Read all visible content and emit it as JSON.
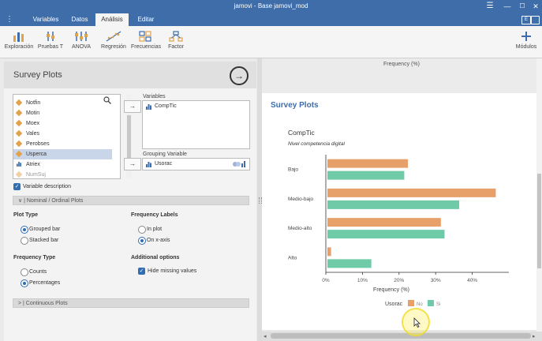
{
  "window": {
    "title": "jamovi - Base jamovi_mod"
  },
  "tabs": [
    {
      "label": "Variables"
    },
    {
      "label": "Datos"
    },
    {
      "label": "Análisis"
    },
    {
      "label": "Editar"
    }
  ],
  "ribbon": {
    "items": [
      {
        "label": "Exploración",
        "icon": "exploration-icon"
      },
      {
        "label": "Pruebas T",
        "icon": "t-test-icon"
      },
      {
        "label": "ANOVA",
        "icon": "anova-icon"
      },
      {
        "label": "Regresión",
        "icon": "regression-icon"
      },
      {
        "label": "Frecuencias",
        "icon": "frequencies-icon"
      },
      {
        "label": "Factor",
        "icon": "factor-icon"
      }
    ],
    "modules_label": "Módulos"
  },
  "analysis": {
    "title": "Survey Plots",
    "variable_list": [
      {
        "name": "Notfin",
        "type": "nominal"
      },
      {
        "name": "Motin",
        "type": "nominal"
      },
      {
        "name": "Moex",
        "type": "nominal"
      },
      {
        "name": "Vales",
        "type": "nominal"
      },
      {
        "name": "Perobses",
        "type": "nominal"
      },
      {
        "name": "Usperca",
        "type": "nominal",
        "selected": true
      },
      {
        "name": "Atriex",
        "type": "continuous"
      },
      {
        "name": "NumSuj",
        "type": "nominal-dimmed"
      }
    ],
    "variables_label": "Variables",
    "variables_value": "CompTic",
    "grouping_label": "Grouping Variable",
    "grouping_value": "Usorac",
    "variable_description_label": "Variable description",
    "nominal_section": "Nominal / Ordinal Plots",
    "plot_type": {
      "heading": "Plot Type",
      "options": [
        "Grouped bar",
        "Stacked bar"
      ],
      "selected": "Grouped bar"
    },
    "frequency_labels": {
      "heading": "Frequency Labels",
      "options": [
        "In plot",
        "On x-axis"
      ],
      "selected": "On x-axis"
    },
    "frequency_type": {
      "heading": "Frequency Type",
      "options": [
        "Counts",
        "Percentages"
      ],
      "selected": "Percentages"
    },
    "additional": {
      "heading": "Additional options",
      "hide_missing_label": "Hide missing values"
    },
    "continuous_section": "Continuous Plots"
  },
  "results": {
    "top_label": "Frequency (%)",
    "heading": "Survey Plots",
    "colors": {
      "no": "#e8a06a",
      "si": "#6fcaa8",
      "heading": "#3e6da9"
    }
  },
  "chart_data": {
    "type": "bar",
    "orientation": "horizontal",
    "title": "CompTic",
    "subtitle": "Nivel competencia digital",
    "xlabel": "Frequency (%)",
    "ylabel": "",
    "categories": [
      "Bajo",
      "Medio-bajo",
      "Medio-alto",
      "Alto"
    ],
    "xlim": [
      0,
      50
    ],
    "xticks": [
      "0%",
      "10%",
      "20%",
      "30%",
      "40%"
    ],
    "legend_title": "Usorac",
    "legend_position": "bottom",
    "series": [
      {
        "name": "No",
        "color": "#e8a06a",
        "values": [
          22,
          46,
          31,
          1
        ]
      },
      {
        "name": "Si",
        "color": "#6fcaa8",
        "values": [
          21,
          36,
          32,
          12
        ]
      }
    ]
  }
}
